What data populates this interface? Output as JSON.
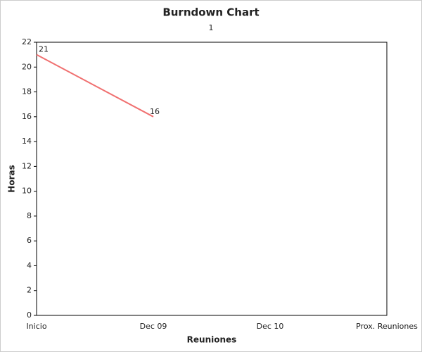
{
  "chart_data": {
    "type": "line",
    "title": "Burndown Chart",
    "subtitle": "1",
    "x_label": "Reuniones",
    "y_label": "Horas",
    "categories": [
      "Inicio",
      "Dec 09",
      "Dec 10",
      "Prox. Reuniones"
    ],
    "values": [
      21,
      16,
      null,
      null
    ],
    "color": "#f07070",
    "ylim": [
      0,
      22
    ],
    "yticks": [
      0,
      2,
      4,
      6,
      8,
      10,
      12,
      14,
      16,
      18,
      20,
      22
    ],
    "grid": false
  }
}
